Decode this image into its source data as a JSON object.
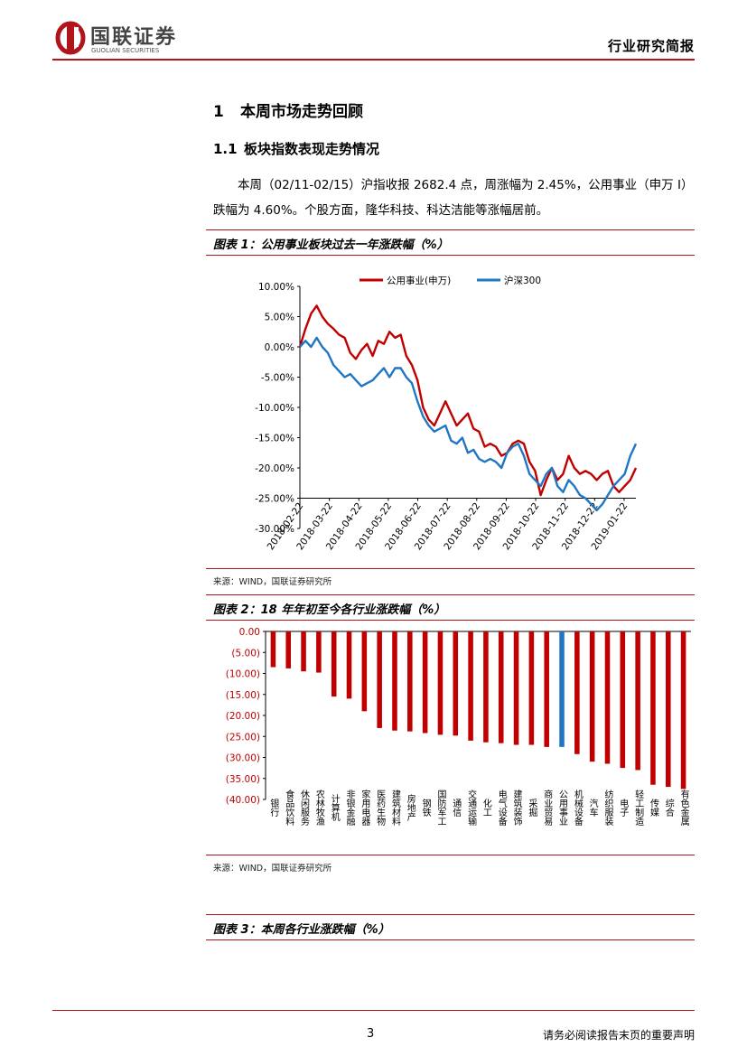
{
  "header": {
    "logo_cn": "国联证券",
    "logo_en": "GUOLIAN SECURITIES",
    "report_type": "行业研究简报",
    "brand_color": "#b0151c"
  },
  "section": {
    "number": "1",
    "title": "本周市场走势回顾",
    "sub_number": "1.1",
    "sub_title": "板块指数表现走势情况",
    "paragraph": "本周（02/11-02/15）沪指收报 2682.4 点，周涨幅为 2.45%，公用事业（申万 I）跌幅为 4.60%。个股方面，隆华科技、科达洁能等涨幅居前。"
  },
  "figures": [
    {
      "title": "图表 1：公用事业板块过去一年涨跌幅（%）",
      "source": "来源：WIND，国联证券研究所"
    },
    {
      "title": "图表 2：18 年年初至今各行业涨跌幅（%）",
      "source": "来源：WIND，国联证券研究所"
    },
    {
      "title": "图表 3：本周各行业涨跌幅（%）"
    }
  ],
  "footer": {
    "page_number": "3",
    "disclaimer": "请务必阅读报告末页的重要声明"
  },
  "chart_data": [
    {
      "type": "line",
      "ylim": [
        -30,
        10
      ],
      "yticks": [
        "10.00%",
        "5.00%",
        "0.00%",
        "-5.00%",
        "-10.00%",
        "-15.00%",
        "-20.00%",
        "-25.00%",
        "-30.00%"
      ],
      "xticks": [
        "2018-02-22",
        "2018-03-22",
        "2018-04-22",
        "2018-05-22",
        "2018-06-22",
        "2018-07-22",
        "2018-08-22",
        "2018-09-22",
        "2018-10-22",
        "2018-11-22",
        "2018-12-22",
        "2019-01-22"
      ],
      "legend_position": "top",
      "series": [
        {
          "name": "公用事业(申万)",
          "color": "#c00000",
          "values": [
            0,
            3,
            5.5,
            6.8,
            5,
            3.8,
            3,
            2,
            1.5,
            -1,
            -2,
            -0.5,
            0.5,
            -1.5,
            1,
            0.5,
            2.5,
            1.5,
            2,
            -1.5,
            -3,
            -5.5,
            -10,
            -12,
            -13,
            -11,
            -9,
            -11,
            -13,
            -12,
            -11,
            -13.5,
            -14,
            -16.5,
            -16,
            -16.5,
            -18,
            -17.5,
            -16,
            -15.5,
            -16,
            -19,
            -20.5,
            -24.5,
            -22,
            -20,
            -22,
            -21,
            -18,
            -20,
            -21,
            -20.5,
            -21,
            -22,
            -21,
            -20.5,
            -23,
            -24,
            -23,
            -22,
            -20
          ]
        },
        {
          "name": "沪深300",
          "color": "#1f77c4",
          "values": [
            0,
            1,
            0,
            1.5,
            0,
            -1,
            -3,
            -4,
            -5,
            -4.5,
            -5.5,
            -6.5,
            -6,
            -5.5,
            -4.5,
            -3.5,
            -5,
            -3.5,
            -3.5,
            -5,
            -6,
            -9,
            -11.5,
            -13,
            -14,
            -13.5,
            -13,
            -15.5,
            -16,
            -15,
            -17.5,
            -17,
            -18.5,
            -19,
            -18.5,
            -19,
            -20,
            -17.5,
            -16.5,
            -16,
            -18,
            -21,
            -22,
            -23,
            -21,
            -20,
            -23,
            -24,
            -22,
            -23,
            -24.5,
            -25,
            -26,
            -27,
            -26,
            -24.5,
            -23,
            -22,
            -21,
            -18,
            -16
          ]
        }
      ]
    },
    {
      "type": "bar",
      "ylim": [
        -40,
        0
      ],
      "yticks": [
        "0.00",
        "(5.00)",
        "(10.00)",
        "(15.00)",
        "(20.00)",
        "(25.00)",
        "(30.00)",
        "(35.00)",
        "(40.00)"
      ],
      "bar_color": "#c00000",
      "highlight_color": "#1f77c4",
      "highlight_category": "公用事业",
      "categories": [
        "银行",
        "食品饮料",
        "休闲服务",
        "农林牧渔",
        "计算机",
        "非银金融",
        "家用电器",
        "医药生物",
        "建筑材料",
        "房地产",
        "钢铁",
        "国防军工",
        "通信",
        "交通运输",
        "化工",
        "电气设备",
        "建筑装饰",
        "采掘",
        "商业贸易",
        "公用事业",
        "机械设备",
        "汽车",
        "纺织服装",
        "电子",
        "轻工制造",
        "传媒",
        "综合",
        "有色金属"
      ],
      "values": [
        -8.5,
        -8.8,
        -9.5,
        -9.8,
        -15.5,
        -16,
        -19,
        -23,
        -23.6,
        -23.8,
        -24.2,
        -24.6,
        -24.8,
        -26,
        -26.4,
        -26.6,
        -27,
        -27,
        -27.5,
        -27.5,
        -29.2,
        -31,
        -31.5,
        -32.5,
        -33,
        -36.5,
        -37,
        -37.5
      ]
    }
  ]
}
